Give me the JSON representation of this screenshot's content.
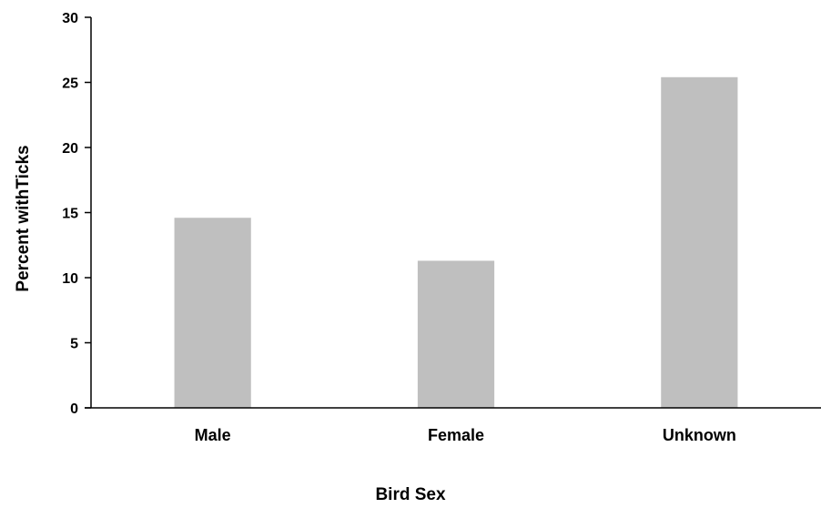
{
  "chart_data": {
    "type": "bar",
    "title": "",
    "xlabel": "Bird Sex",
    "ylabel": "Percent withTicks",
    "categories": [
      "Male",
      "Female",
      "Unknown"
    ],
    "values": [
      14.6,
      11.3,
      25.4
    ],
    "ylim": [
      0,
      30
    ],
    "yticks": [
      0,
      5,
      10,
      15,
      20,
      25,
      30
    ],
    "grid": false,
    "legend": "none",
    "bar_color": "#bfbfbf",
    "axis_color": "#000000"
  }
}
